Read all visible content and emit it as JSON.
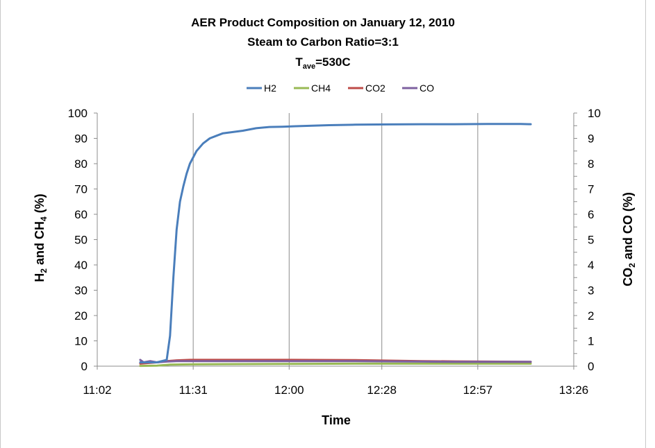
{
  "chart_data": {
    "type": "line",
    "title_lines": [
      "AER Product Composition  on January 12, 2010",
      "Steam to Carbon Ratio=3:1"
    ],
    "title_tave": {
      "prefix": "T",
      "sub": "ave",
      "suffix": "=530C"
    },
    "xlabel": "Time",
    "ylabel_left": {
      "a": "H",
      "a_sub": "2",
      "b": " and CH",
      "b_sub": "4",
      "c": "  (%)"
    },
    "ylabel_right": {
      "a": "CO",
      "a_sub": "2",
      "b": " and CO (%)"
    },
    "x_ticks": [
      "11:02",
      "11:31",
      "12:00",
      "12:28",
      "12:57",
      "13:26"
    ],
    "x_range_minutes": [
      662,
      806
    ],
    "x_tick_minutes": [
      662,
      691,
      720,
      748,
      777,
      806
    ],
    "y_left_ticks": [
      "0",
      "10",
      "20",
      "30",
      "40",
      "50",
      "60",
      "70",
      "80",
      "90",
      "100"
    ],
    "y_left_range": [
      0,
      100
    ],
    "y_right_ticks": [
      "0",
      "0.5",
      "1",
      "1.5",
      "2",
      "2.5",
      "3",
      "3.5",
      "4",
      "4.5",
      "5",
      "5.5",
      "6",
      "6.5",
      "7",
      "7.5",
      "8",
      "8.5",
      "9",
      "9.5",
      "10"
    ],
    "y_right_tick_labels": [
      "0",
      "1",
      "2",
      "3",
      "4",
      "5",
      "6",
      "7",
      "8",
      "9",
      "10"
    ],
    "y_right_range": [
      0,
      10
    ],
    "grid": "vertical",
    "legend_position": "top",
    "series": [
      {
        "name": "H2",
        "axis": "left",
        "color": "#4a7ebb",
        "x": [
          675,
          680,
          683,
          684,
          685,
          686,
          687,
          688,
          689,
          690,
          692,
          694,
          696,
          698,
          700,
          703,
          706,
          710,
          714,
          718,
          722,
          727,
          732,
          740,
          750,
          760,
          770,
          780,
          790,
          793
        ],
        "y": [
          1.5,
          1.5,
          2.5,
          12,
          35,
          54,
          65,
          71,
          76,
          80,
          85,
          88,
          90,
          91,
          92,
          92.5,
          93,
          94,
          94.5,
          94.6,
          94.8,
          95,
          95.2,
          95.4,
          95.5,
          95.6,
          95.6,
          95.7,
          95.7,
          95.6
        ]
      },
      {
        "name": "CH4",
        "axis": "left",
        "color": "#98b954",
        "x": [
          675,
          680,
          682,
          684,
          690,
          700,
          720,
          740,
          760,
          780,
          793
        ],
        "y": [
          0.1,
          0.2,
          0.4,
          0.6,
          0.7,
          0.8,
          0.9,
          1.0,
          1.0,
          1.0,
          1.0
        ]
      },
      {
        "name": "CO2",
        "axis": "right",
        "color": "#be4b48",
        "x": [
          675,
          680,
          683,
          686,
          690,
          700,
          720,
          740,
          750,
          760,
          770,
          780,
          793
        ],
        "y": [
          0.1,
          0.15,
          0.2,
          0.23,
          0.25,
          0.25,
          0.25,
          0.24,
          0.22,
          0.2,
          0.19,
          0.18,
          0.17
        ]
      },
      {
        "name": "CO",
        "axis": "right",
        "color": "#7d60a0",
        "x": [
          675,
          676,
          678,
          680,
          683,
          686,
          690,
          700,
          720,
          740,
          750,
          760,
          770,
          780,
          793
        ],
        "y": [
          0.25,
          0.15,
          0.2,
          0.15,
          0.18,
          0.2,
          0.2,
          0.2,
          0.2,
          0.2,
          0.19,
          0.18,
          0.17,
          0.17,
          0.17
        ]
      }
    ]
  }
}
